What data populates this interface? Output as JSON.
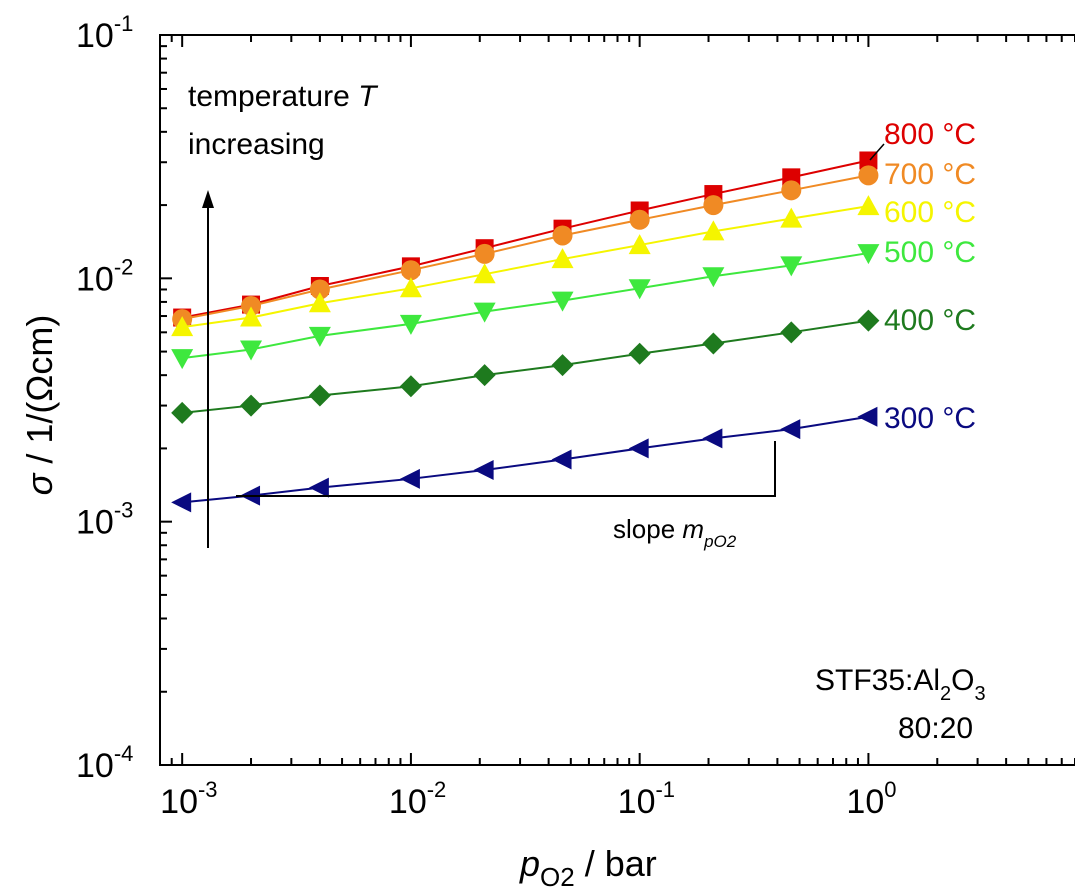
{
  "chart_data": {
    "type": "scatter",
    "x_scale": "log",
    "y_scale": "log",
    "xlim": [
      0.0008,
      8
    ],
    "ylim": [
      0.0001,
      0.1
    ],
    "ylabel": {
      "sym": "σ",
      "rest": " / 1/(Ωcm)"
    },
    "xlabel": {
      "sym": "p",
      "sub": "O2",
      "rest": " / bar"
    },
    "x_ticks": [
      {
        "value": 0.001,
        "base": "10",
        "exp": "-3"
      },
      {
        "value": 0.01,
        "base": "10",
        "exp": "-2"
      },
      {
        "value": 0.1,
        "base": "10",
        "exp": "-1"
      },
      {
        "value": 1,
        "base": "10",
        "exp": "0"
      }
    ],
    "y_ticks": [
      {
        "value": 0.0001,
        "base": "10",
        "exp": "-4"
      },
      {
        "value": 0.001,
        "base": "10",
        "exp": "-3"
      },
      {
        "value": 0.01,
        "base": "10",
        "exp": "-2"
      },
      {
        "value": 0.1,
        "base": "10",
        "exp": "-1"
      }
    ],
    "x": [
      0.001,
      0.002,
      0.004,
      0.01,
      0.021,
      0.046,
      0.1,
      0.21,
      0.46,
      1.0
    ],
    "series": [
      {
        "name": "800 °C",
        "color": "#dd0000",
        "marker": "square",
        "values": [
          0.0069,
          0.0078,
          0.0093,
          0.0112,
          0.0133,
          0.016,
          0.019,
          0.0222,
          0.026,
          0.0305
        ]
      },
      {
        "name": "700 °C",
        "color": "#f08a24",
        "marker": "circle",
        "values": [
          0.0068,
          0.0077,
          0.009,
          0.0108,
          0.0126,
          0.015,
          0.0174,
          0.02,
          0.023,
          0.0265
        ]
      },
      {
        "name": "600 °C",
        "color": "#f5f500",
        "marker": "triangle-up",
        "values": [
          0.0063,
          0.0069,
          0.0079,
          0.0091,
          0.0104,
          0.012,
          0.0137,
          0.0156,
          0.0176,
          0.0198
        ]
      },
      {
        "name": "500 °C",
        "color": "#3ee83e",
        "marker": "triangle-down",
        "values": [
          0.0047,
          0.0051,
          0.0058,
          0.0065,
          0.0073,
          0.0081,
          0.0091,
          0.0102,
          0.0113,
          0.0127
        ]
      },
      {
        "name": "400 °C",
        "color": "#1e7a1e",
        "marker": "diamond",
        "values": [
          0.0028,
          0.003,
          0.0033,
          0.0036,
          0.004,
          0.0044,
          0.0049,
          0.0054,
          0.006,
          0.0067
        ]
      },
      {
        "name": "300 °C",
        "color": "#0a0a80",
        "marker": "triangle-left",
        "values": [
          0.0012,
          0.00128,
          0.00138,
          0.0015,
          0.00163,
          0.0018,
          0.002,
          0.0022,
          0.0024,
          0.0027
        ]
      }
    ],
    "annotations": {
      "temperature_line1": "temperature ",
      "temperature_T": "T",
      "temperature_line2": "increasing",
      "slope_text": "slope ",
      "slope_m": "m",
      "slope_sub": "pO2",
      "sample_main": "STF35:Al",
      "sample_sub2": "2",
      "sample_O": "O",
      "sample_sub3": "3",
      "ratio": "80:20"
    },
    "grid": false,
    "legend": "none"
  }
}
